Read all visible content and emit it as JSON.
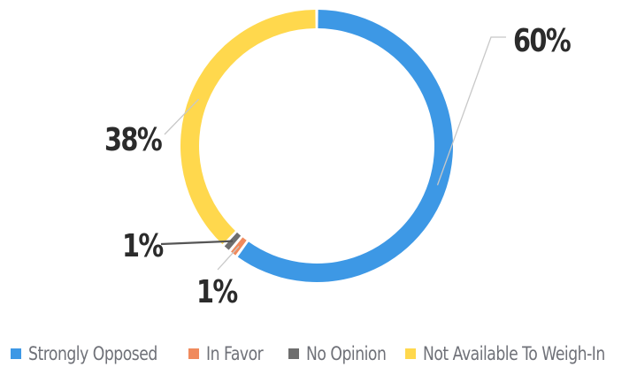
{
  "chart_data": {
    "type": "pie",
    "style": "donut",
    "title": "",
    "categories": [
      "Strongly Opposed",
      "In Favor",
      "No Opinion",
      "Not Available To Weigh-In"
    ],
    "values": [
      60,
      1,
      1,
      38
    ],
    "labels": [
      "60%",
      "1%",
      "1%",
      "38%"
    ],
    "colors": [
      "#3d98e5",
      "#f08a5d",
      "#6e6e6e",
      "#ffd84d"
    ],
    "legend_position": "bottom"
  }
}
